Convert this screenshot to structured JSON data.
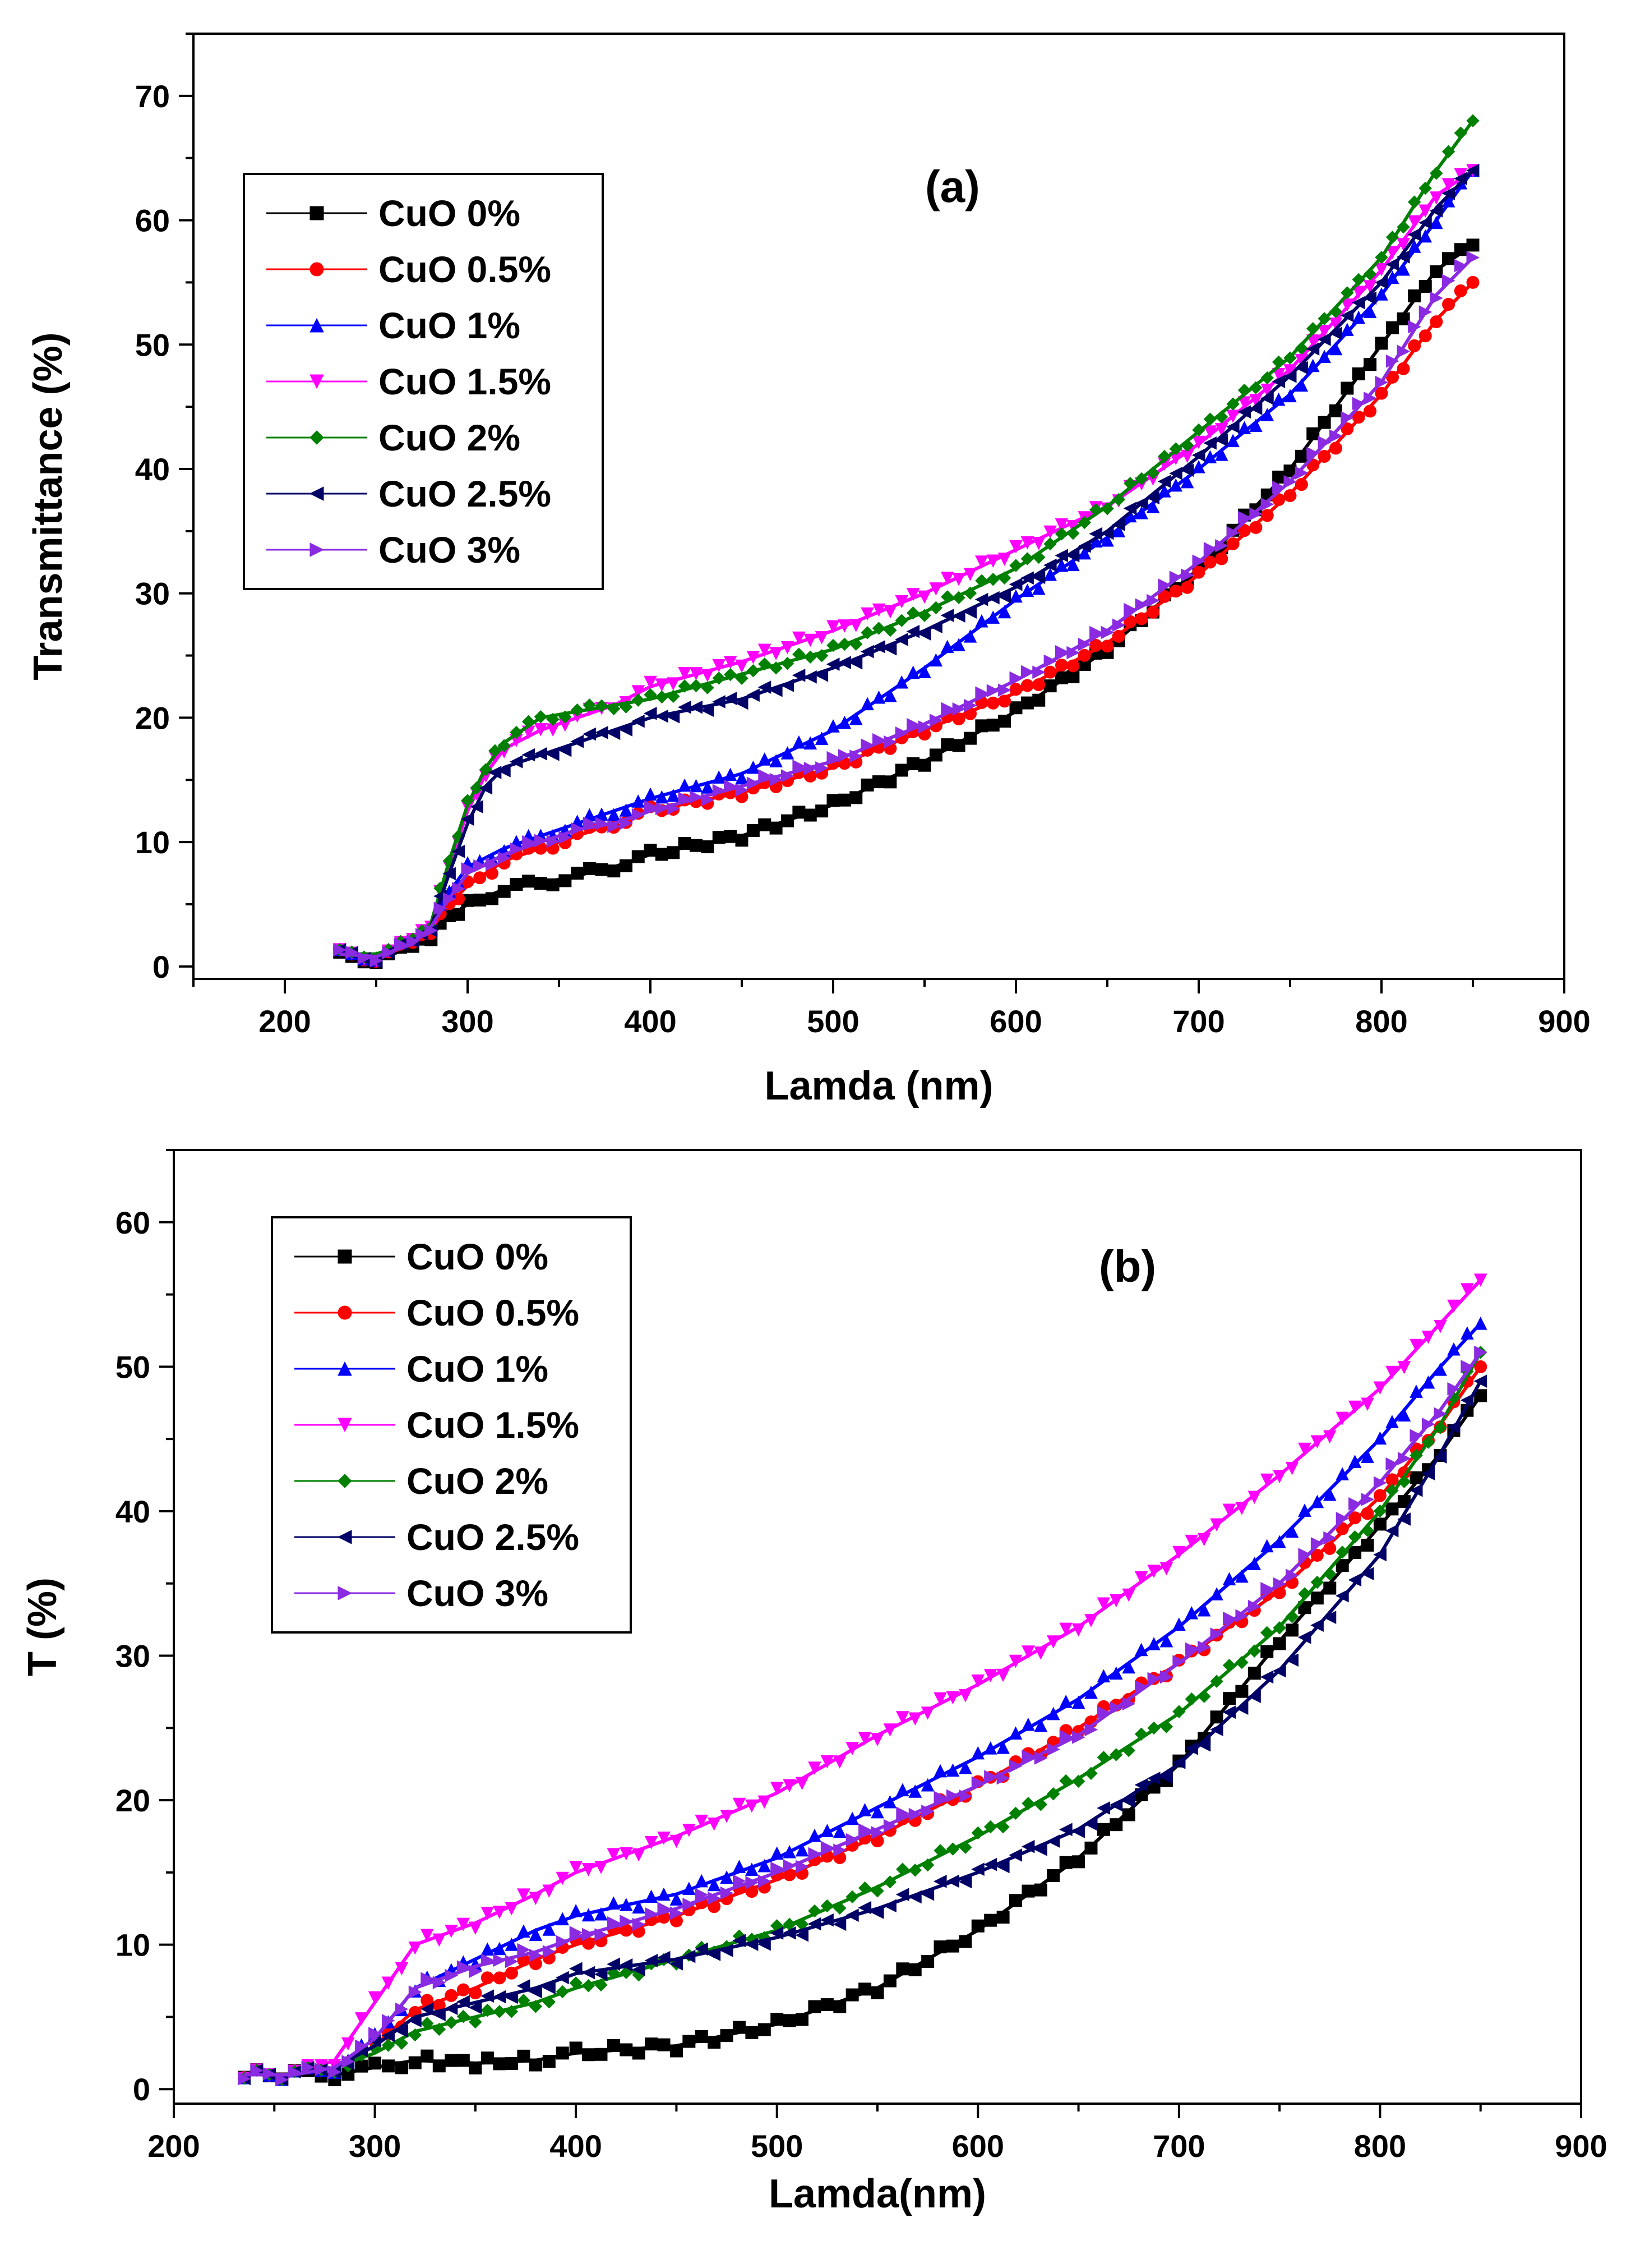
{
  "chart_data": [
    {
      "type": "scatter",
      "panel_label": "(a)",
      "xlabel": "Lamda (nm)",
      "ylabel": "Transmittance (%)",
      "xlim": [
        150,
        900
      ],
      "ylim": [
        -1,
        75
      ],
      "x_ticks": [
        200,
        300,
        400,
        500,
        600,
        700,
        800,
        900
      ],
      "y_ticks": [
        0,
        10,
        20,
        30,
        40,
        50,
        60,
        70
      ],
      "legend_position": "top-left",
      "series": [
        {
          "name": "CuO 0%",
          "color": "#000000",
          "marker": "square",
          "x": [
            230,
            250,
            270,
            280,
            290,
            300,
            320,
            340,
            360,
            380,
            400,
            450,
            500,
            550,
            600,
            650,
            700,
            750,
            800,
            830,
            850
          ],
          "y": [
            0.8,
            0.6,
            1.5,
            2.5,
            4,
            5,
            6.2,
            6.7,
            7.3,
            8,
            9,
            10.5,
            13,
            16.5,
            20.5,
            25.5,
            32,
            40,
            50,
            56,
            58
          ]
        },
        {
          "name": "CuO 0.5%",
          "color": "#ff0000",
          "marker": "circle",
          "x": [
            230,
            250,
            270,
            280,
            290,
            300,
            320,
            340,
            360,
            380,
            400,
            450,
            500,
            550,
            600,
            650,
            700,
            750,
            800,
            830,
            850
          ],
          "y": [
            1,
            0.7,
            1.8,
            3,
            5,
            6.5,
            8.5,
            9.5,
            10.5,
            11.5,
            12.5,
            14,
            16,
            19,
            22,
            26,
            31.5,
            38,
            46,
            52,
            55
          ]
        },
        {
          "name": "CuO 1%",
          "color": "#0000ff",
          "marker": "triangle-up",
          "x": [
            230,
            250,
            270,
            280,
            290,
            300,
            320,
            340,
            360,
            380,
            400,
            450,
            500,
            550,
            600,
            650,
            700,
            750,
            800,
            830,
            850
          ],
          "y": [
            1,
            0.8,
            2,
            3.5,
            6,
            8,
            9.5,
            10.5,
            11.5,
            12.5,
            13.5,
            15.5,
            19,
            24,
            29.5,
            34.5,
            40,
            46,
            54,
            60,
            64
          ]
        },
        {
          "name": "CuO 1.5%",
          "color": "#ff00ff",
          "marker": "triangle-down",
          "x": [
            230,
            250,
            270,
            280,
            290,
            300,
            310,
            320,
            340,
            360,
            380,
            400,
            450,
            500,
            550,
            600,
            650,
            700,
            750,
            800,
            830,
            850
          ],
          "y": [
            1,
            0.8,
            2,
            3.5,
            8,
            12.5,
            15.5,
            17.5,
            19,
            20,
            21,
            22.5,
            24.5,
            27,
            30,
            33.5,
            37,
            42,
            48,
            56,
            62,
            64
          ]
        },
        {
          "name": "CuO 2%",
          "color": "#008000",
          "marker": "diamond",
          "x": [
            230,
            250,
            270,
            280,
            290,
            300,
            310,
            320,
            340,
            360,
            380,
            400,
            450,
            500,
            550,
            600,
            650,
            700,
            750,
            800,
            830,
            850
          ],
          "y": [
            1,
            1,
            2,
            3.5,
            8.5,
            13,
            16,
            18,
            20,
            20.5,
            21,
            21.5,
            23.5,
            25.5,
            28.5,
            32,
            37,
            43,
            49,
            57,
            64,
            68
          ]
        },
        {
          "name": "CuO 2.5%",
          "color": "#000066",
          "marker": "triangle-left",
          "x": [
            230,
            250,
            270,
            280,
            290,
            300,
            310,
            320,
            340,
            360,
            380,
            400,
            450,
            500,
            550,
            600,
            650,
            700,
            750,
            800,
            830,
            850
          ],
          "y": [
            1,
            0.8,
            1.8,
            3.2,
            7.5,
            11.5,
            14.5,
            16,
            17,
            18,
            19,
            20,
            21.5,
            24,
            27,
            30.5,
            35,
            41,
            47.5,
            55,
            61,
            64
          ]
        },
        {
          "name": "CuO 3%",
          "color": "#8a2be2",
          "marker": "triangle-right",
          "x": [
            230,
            250,
            270,
            280,
            290,
            300,
            320,
            340,
            360,
            380,
            400,
            450,
            500,
            550,
            600,
            650,
            700,
            750,
            800,
            830,
            850
          ],
          "y": [
            1,
            0.8,
            1.8,
            3.2,
            5.5,
            7.5,
            9,
            10,
            11,
            11.5,
            12.5,
            14.5,
            16.5,
            19.5,
            23,
            27,
            32.5,
            39,
            47,
            54,
            57
          ]
        }
      ]
    },
    {
      "type": "scatter",
      "panel_label": "(b)",
      "xlabel": "Lamda(nm)",
      "ylabel": "T (%)",
      "xlim": [
        200,
        900
      ],
      "ylim": [
        -1,
        65
      ],
      "x_ticks": [
        200,
        300,
        400,
        500,
        600,
        700,
        800,
        900
      ],
      "y_ticks": [
        0,
        10,
        20,
        30,
        40,
        50,
        60
      ],
      "legend_position": "top-left",
      "series": [
        {
          "name": "CuO 0%",
          "color": "#000000",
          "marker": "square",
          "x": [
            235,
            260,
            280,
            300,
            320,
            350,
            380,
            400,
            450,
            500,
            550,
            600,
            650,
            700,
            750,
            800,
            830,
            850
          ],
          "y": [
            1,
            1,
            1,
            1.5,
            2,
            1.8,
            2,
            2.5,
            3,
            4.5,
            7,
            11,
            16,
            22.5,
            31,
            39,
            44,
            48
          ]
        },
        {
          "name": "CuO 0.5%",
          "color": "#ff0000",
          "marker": "circle",
          "x": [
            235,
            260,
            280,
            300,
            320,
            350,
            380,
            400,
            450,
            500,
            550,
            600,
            650,
            700,
            750,
            800,
            830,
            850
          ],
          "y": [
            1,
            1,
            1.5,
            3,
            5.5,
            7,
            9,
            10,
            12,
            14.5,
            17.5,
            21,
            25,
            29.5,
            34.5,
            41,
            46,
            50
          ]
        },
        {
          "name": "CuO 1%",
          "color": "#0000ff",
          "marker": "triangle-up",
          "x": [
            235,
            260,
            280,
            300,
            320,
            350,
            380,
            400,
            450,
            500,
            550,
            600,
            650,
            700,
            750,
            800,
            830,
            850
          ],
          "y": [
            1,
            1,
            1.5,
            3.5,
            7,
            9,
            11,
            12,
            13.5,
            16,
            19.5,
            23,
            27,
            32,
            38,
            45,
            50,
            53
          ]
        },
        {
          "name": "CuO 1.5%",
          "color": "#ff00ff",
          "marker": "triangle-down",
          "x": [
            235,
            260,
            280,
            300,
            320,
            350,
            380,
            400,
            450,
            500,
            550,
            600,
            650,
            700,
            750,
            800,
            830,
            850
          ],
          "y": [
            1,
            1,
            2,
            6,
            10,
            11.5,
            13.5,
            15,
            17.5,
            20.5,
            24.5,
            28,
            32,
            37,
            42.5,
            48.5,
            53,
            56
          ]
        },
        {
          "name": "CuO 2%",
          "color": "#008000",
          "marker": "diamond",
          "x": [
            235,
            260,
            280,
            300,
            320,
            350,
            380,
            400,
            450,
            500,
            550,
            600,
            650,
            700,
            750,
            800,
            830,
            850
          ],
          "y": [
            1,
            1,
            1.5,
            2.5,
            4,
            5,
            6,
            7,
            9,
            11,
            14,
            17.5,
            21.5,
            26,
            32,
            40,
            46,
            51
          ]
        },
        {
          "name": "CuO 2.5%",
          "color": "#000066",
          "marker": "triangle-left",
          "x": [
            235,
            260,
            280,
            300,
            320,
            350,
            380,
            400,
            450,
            500,
            550,
            600,
            650,
            700,
            750,
            800,
            830,
            850
          ],
          "y": [
            1,
            1,
            1.5,
            3,
            5,
            6,
            7,
            8,
            9,
            10.5,
            12.5,
            15,
            18,
            22.5,
            29,
            37,
            44,
            49
          ]
        },
        {
          "name": "CuO 3%",
          "color": "#8a2be2",
          "marker": "triangle-right",
          "x": [
            235,
            260,
            280,
            300,
            320,
            350,
            380,
            400,
            450,
            500,
            550,
            600,
            650,
            700,
            750,
            800,
            830,
            850
          ],
          "y": [
            1,
            1,
            1.5,
            3.5,
            7,
            8.5,
            9.5,
            10.5,
            12.5,
            15,
            18,
            21,
            24.5,
            29.5,
            35,
            42,
            47,
            51
          ]
        }
      ]
    }
  ]
}
